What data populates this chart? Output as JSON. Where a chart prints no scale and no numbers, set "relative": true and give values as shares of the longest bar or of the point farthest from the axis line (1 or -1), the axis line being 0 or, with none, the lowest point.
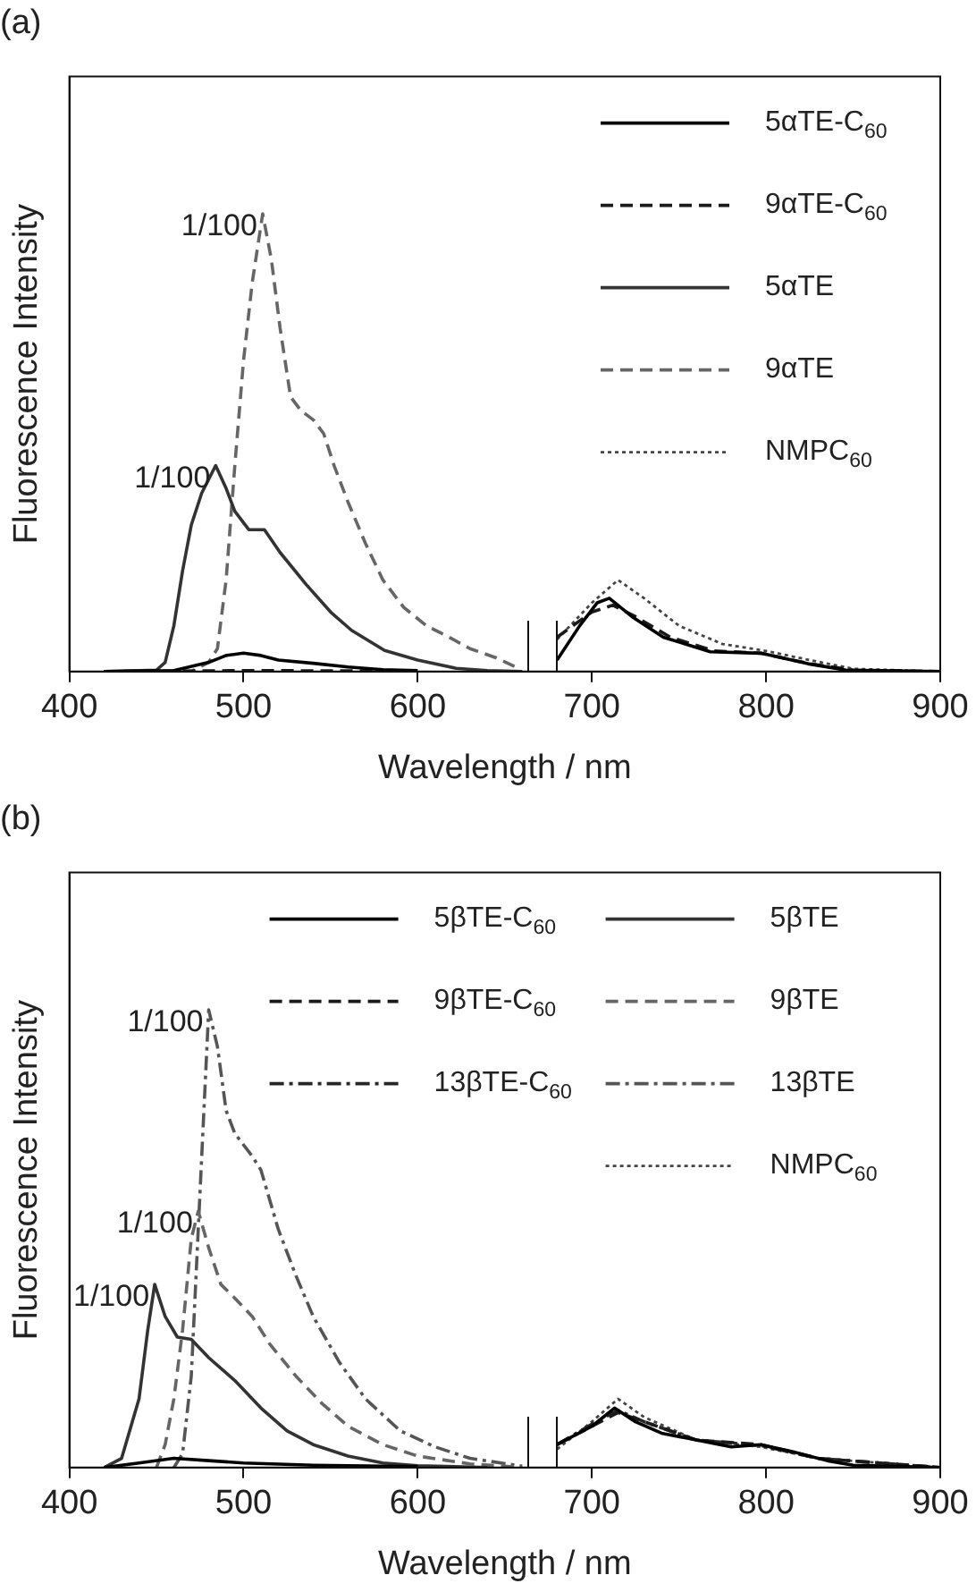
{
  "chart_data": [
    {
      "type": "line",
      "title": "(a)",
      "xlabel": "Wavelength / nm",
      "ylabel": "Fluorescence Intensity",
      "relative": true,
      "xlim": [
        400,
        900
      ],
      "xticks": [
        400,
        500,
        600,
        700,
        800,
        900
      ],
      "tick_labels": "x",
      "grid": false,
      "legend": "top right",
      "marker": "none",
      "annotations": [
        {
          "text": "1/100",
          "x": 511,
          "y": 1.0
        },
        {
          "text": "1/100",
          "x": 484,
          "y": 0.45
        }
      ],
      "series": [
        {
          "name": "5αTE-C$_{60}$",
          "color": "#000000",
          "line_style": "solid",
          "x": [
            420,
            460,
            480,
            490,
            500,
            510,
            520,
            540,
            560,
            580,
            600,
            640,
            680,
            693,
            703,
            710,
            723,
            741,
            768,
            797,
            824,
            846,
            900
          ],
          "values": [
            0,
            0.002,
            0.02,
            0.035,
            0.04,
            0.035,
            0.025,
            0.018,
            0.01,
            0.004,
            0.002,
            null,
            0.025,
            0.1,
            0.15,
            0.16,
            0.12,
            0.075,
            0.043,
            0.04,
            0.017,
            0.003,
            0
          ]
        },
        {
          "name": "9αTE-C$_{60}$",
          "color": "#1a1a1a",
          "line_style": "dashed",
          "x": [
            420,
            500,
            600,
            640,
            680,
            700,
            712,
            725,
            745,
            770,
            797,
            825,
            850,
            900
          ],
          "values": [
            0,
            0.002,
            0.001,
            null,
            0.075,
            0.13,
            0.145,
            0.12,
            0.075,
            0.045,
            0.04,
            0.017,
            0.003,
            0
          ]
        },
        {
          "name": "5αTE",
          "color": "#333333",
          "line_style": "solid",
          "x": [
            420,
            450,
            455,
            460,
            465,
            470,
            476,
            484,
            490,
            495,
            503,
            512,
            521,
            536,
            550,
            562,
            581,
            600,
            622,
            640,
            660
          ],
          "values": [
            0,
            0.003,
            0.02,
            0.1,
            0.22,
            0.32,
            0.39,
            0.45,
            0.4,
            0.35,
            0.31,
            0.31,
            0.26,
            0.19,
            0.13,
            0.09,
            0.046,
            0.025,
            0.007,
            0.002,
            0
          ]
        },
        {
          "name": "9αTE",
          "color": "#666666",
          "line_style": "dashed",
          "x": [
            420,
            470,
            480,
            485,
            490,
            495,
            500,
            505,
            511,
            516,
            521,
            527,
            533,
            540,
            546,
            552,
            560,
            570,
            580,
            592,
            605,
            618,
            630,
            645,
            659
          ],
          "values": [
            0,
            0,
            0.02,
            0.05,
            0.2,
            0.45,
            0.68,
            0.85,
            1.0,
            0.9,
            0.75,
            0.6,
            0.57,
            0.55,
            0.52,
            0.45,
            0.37,
            0.28,
            0.2,
            0.14,
            0.1,
            0.075,
            0.05,
            0.03,
            0.005
          ]
        },
        {
          "name": "NMPC$_{60}$",
          "color": "#444444",
          "line_style": "dotted",
          "x": [
            680,
            700,
            715,
            730,
            750,
            775,
            800,
            825,
            850,
            900
          ],
          "values": [
            0.07,
            0.15,
            0.2,
            0.16,
            0.1,
            0.06,
            0.045,
            0.025,
            0.006,
            0
          ]
        }
      ]
    },
    {
      "type": "line",
      "title": "(b)",
      "xlabel": "Wavelength / nm",
      "ylabel": "Fluorescence Intensity",
      "relative": true,
      "xlim": [
        400,
        900
      ],
      "xticks": [
        400,
        500,
        600,
        700,
        800,
        900
      ],
      "tick_labels": "x",
      "grid": false,
      "legend": "top right",
      "marker": "none",
      "annotations": [
        {
          "text": "1/100",
          "x": 480,
          "y": 1.0
        },
        {
          "text": "1/100",
          "x": 474,
          "y": 0.56
        },
        {
          "text": "1/100",
          "x": 449,
          "y": 0.4
        }
      ],
      "series": [
        {
          "name": "5βTE-C$_{60}$",
          "color": "#000000",
          "line_style": "solid",
          "x": [
            420,
            440,
            460,
            480,
            500,
            540,
            600,
            640,
            680,
            700,
            713,
            725,
            740,
            760,
            780,
            797,
            815,
            835,
            850,
            900
          ],
          "values": [
            0,
            0.01,
            0.02,
            0.015,
            0.01,
            0.005,
            0.002,
            null,
            0.05,
            0.09,
            0.13,
            0.1,
            0.075,
            0.06,
            0.045,
            0.05,
            0.035,
            0.015,
            0.005,
            0
          ]
        },
        {
          "name": "5βTE",
          "color": "#333333",
          "line_style": "solid",
          "x": [
            420,
            430,
            440,
            445,
            449,
            455,
            462,
            470,
            480,
            495,
            510,
            525,
            540,
            560,
            580,
            600,
            640
          ],
          "values": [
            0,
            0.02,
            0.15,
            0.3,
            0.4,
            0.33,
            0.285,
            0.28,
            0.24,
            0.19,
            0.13,
            0.08,
            0.05,
            0.025,
            0.01,
            0.004,
            0
          ]
        },
        {
          "name": "9βTE-C$_{60}$",
          "color": "#1a1a1a",
          "line_style": "dashed",
          "x": [
            680,
            700,
            715,
            730,
            760,
            797,
            830,
            900
          ],
          "values": [
            0.05,
            0.09,
            0.12,
            0.1,
            0.06,
            0.05,
            0.02,
            0
          ]
        },
        {
          "name": "9βTE",
          "color": "#666666",
          "line_style": "dashed",
          "x": [
            450,
            455,
            460,
            465,
            470,
            474,
            480,
            487,
            495,
            505,
            515,
            530,
            545,
            560,
            580,
            600,
            630,
            660
          ],
          "values": [
            0,
            0.05,
            0.15,
            0.3,
            0.5,
            0.56,
            0.48,
            0.4,
            0.37,
            0.33,
            0.27,
            0.2,
            0.14,
            0.09,
            0.05,
            0.025,
            0.008,
            0
          ]
        },
        {
          "name": "13βTE-C$_{60}$",
          "color": "#262626",
          "line_style": "dashdot",
          "x": [
            680,
            700,
            715,
            730,
            760,
            797,
            830,
            900
          ],
          "values": [
            0.05,
            0.095,
            0.125,
            0.1,
            0.06,
            0.048,
            0.02,
            0
          ]
        },
        {
          "name": "13βTE",
          "color": "#555555",
          "line_style": "dashdot",
          "x": [
            460,
            465,
            470,
            475,
            480,
            485,
            490,
            495,
            505,
            510,
            520,
            530,
            540,
            555,
            570,
            590,
            610,
            630,
            660
          ],
          "values": [
            0,
            0.03,
            0.2,
            0.6,
            1.0,
            0.92,
            0.78,
            0.73,
            0.68,
            0.65,
            0.52,
            0.42,
            0.33,
            0.23,
            0.15,
            0.08,
            0.045,
            0.02,
            0.003
          ]
        },
        {
          "name": "NMPC$_{60}$",
          "color": "#444444",
          "line_style": "dotted",
          "x": [
            680,
            700,
            715,
            730,
            760,
            797,
            830,
            900
          ],
          "values": [
            0.04,
            0.1,
            0.15,
            0.11,
            0.06,
            0.045,
            0.02,
            0
          ]
        }
      ]
    }
  ]
}
